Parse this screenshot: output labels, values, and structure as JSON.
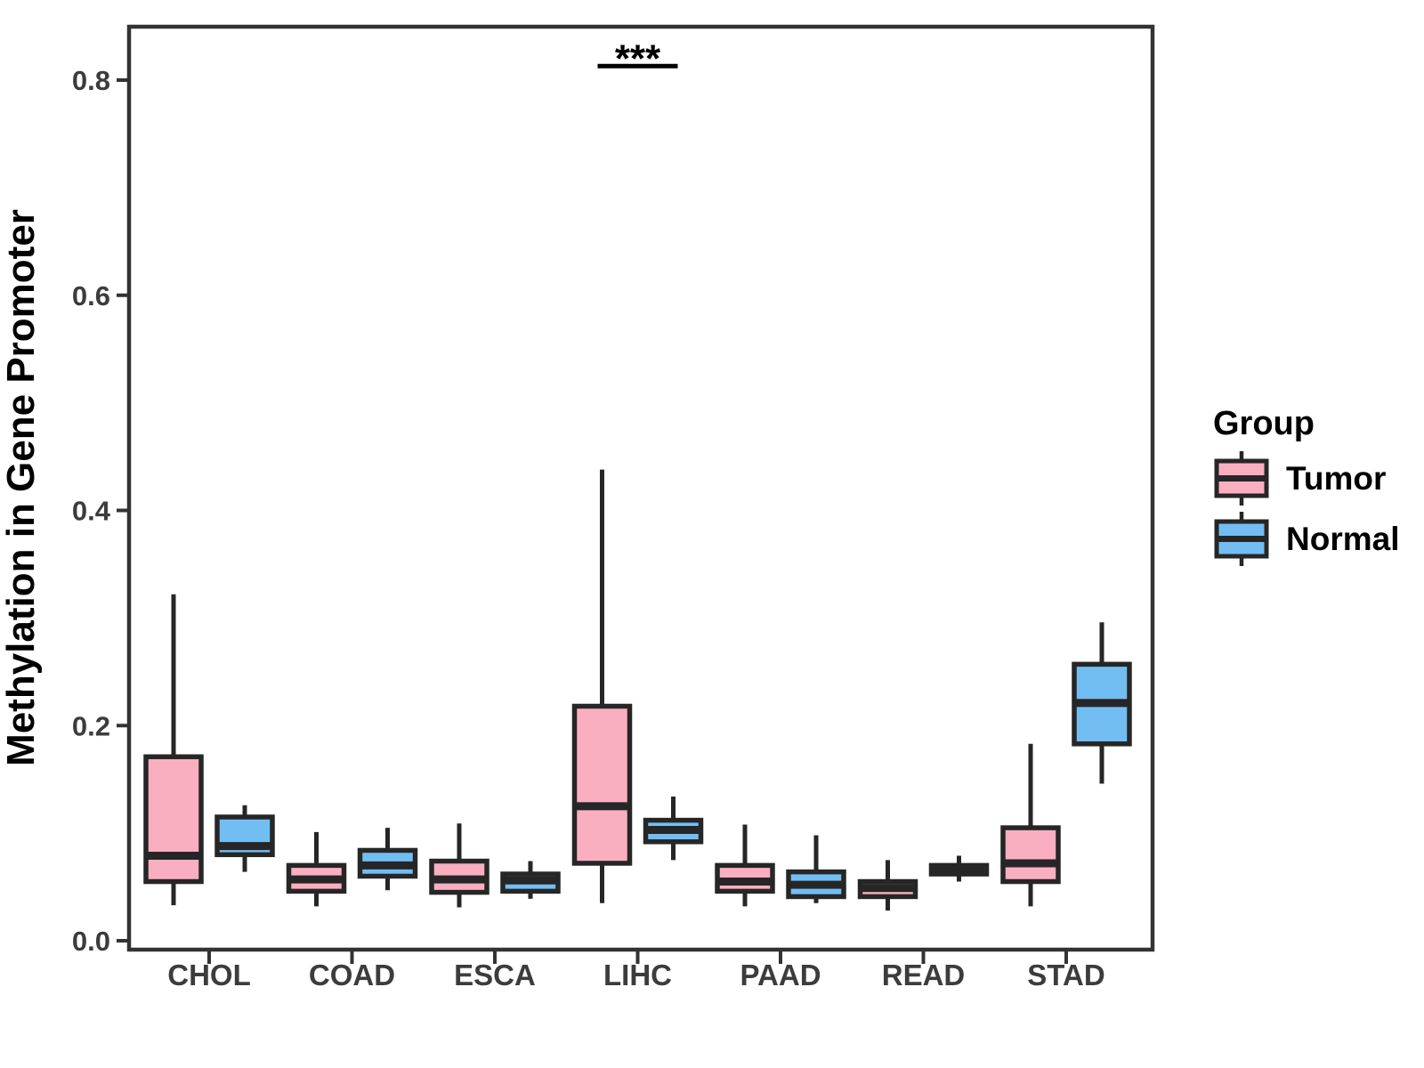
{
  "legend": {
    "title": "Group",
    "items": [
      {
        "label": "Tumor",
        "color_key": "tumor_fill"
      },
      {
        "label": "Normal",
        "color_key": "normal_fill"
      }
    ]
  },
  "colors": {
    "tumor_fill": "#FAAFC1",
    "normal_fill": "#72BEF2",
    "box_stroke": "#262626",
    "axis_line": "#333333",
    "axis_text": "#3C3C3C",
    "title_text": "#000000"
  },
  "chart_data": {
    "type": "box",
    "title": "",
    "xlabel": "",
    "ylabel": "Methylation in Gene Promoter",
    "ylim": [
      0,
      0.85
    ],
    "grid": false,
    "legend_position": "right",
    "yticks": [
      {
        "value": 0.0,
        "label": "0.0"
      },
      {
        "value": 0.2,
        "label": "0.2"
      },
      {
        "value": 0.4,
        "label": "0.4"
      },
      {
        "value": 0.6,
        "label": "0.6"
      },
      {
        "value": 0.8,
        "label": "0.8"
      }
    ],
    "categories": [
      "CHOL",
      "COAD",
      "ESCA",
      "LIHC",
      "PAAD",
      "READ",
      "STAD"
    ],
    "series": [
      {
        "name": "Tumor",
        "color_key": "tumor_fill",
        "boxes": [
          {
            "low": 0.033,
            "q1": 0.055,
            "med": 0.079,
            "q3": 0.171,
            "high": 0.322
          },
          {
            "low": 0.032,
            "q1": 0.046,
            "med": 0.057,
            "q3": 0.07,
            "high": 0.101
          },
          {
            "low": 0.031,
            "q1": 0.045,
            "med": 0.057,
            "q3": 0.074,
            "high": 0.109
          },
          {
            "low": 0.035,
            "q1": 0.072,
            "med": 0.125,
            "q3": 0.218,
            "high": 0.438
          },
          {
            "low": 0.032,
            "q1": 0.046,
            "med": 0.055,
            "q3": 0.07,
            "high": 0.108
          },
          {
            "low": 0.028,
            "q1": 0.041,
            "med": 0.049,
            "q3": 0.055,
            "high": 0.075
          },
          {
            "low": 0.032,
            "q1": 0.055,
            "med": 0.072,
            "q3": 0.105,
            "high": 0.183
          }
        ]
      },
      {
        "name": "Normal",
        "color_key": "normal_fill",
        "boxes": [
          {
            "low": 0.064,
            "q1": 0.08,
            "med": 0.088,
            "q3": 0.115,
            "high": 0.126
          },
          {
            "low": 0.047,
            "q1": 0.06,
            "med": 0.07,
            "q3": 0.084,
            "high": 0.105
          },
          {
            "low": 0.039,
            "q1": 0.046,
            "med": 0.056,
            "q3": 0.062,
            "high": 0.074
          },
          {
            "low": 0.075,
            "q1": 0.092,
            "med": 0.103,
            "q3": 0.112,
            "high": 0.134
          },
          {
            "low": 0.035,
            "q1": 0.041,
            "med": 0.052,
            "q3": 0.064,
            "high": 0.098
          },
          {
            "low": 0.055,
            "q1": 0.062,
            "med": 0.066,
            "q3": 0.07,
            "high": 0.079
          },
          {
            "low": 0.146,
            "q1": 0.183,
            "med": 0.221,
            "q3": 0.257,
            "high": 0.296
          }
        ]
      }
    ],
    "annotations": [
      {
        "text": "***",
        "category": "LIHC",
        "y": 0.813
      }
    ]
  }
}
